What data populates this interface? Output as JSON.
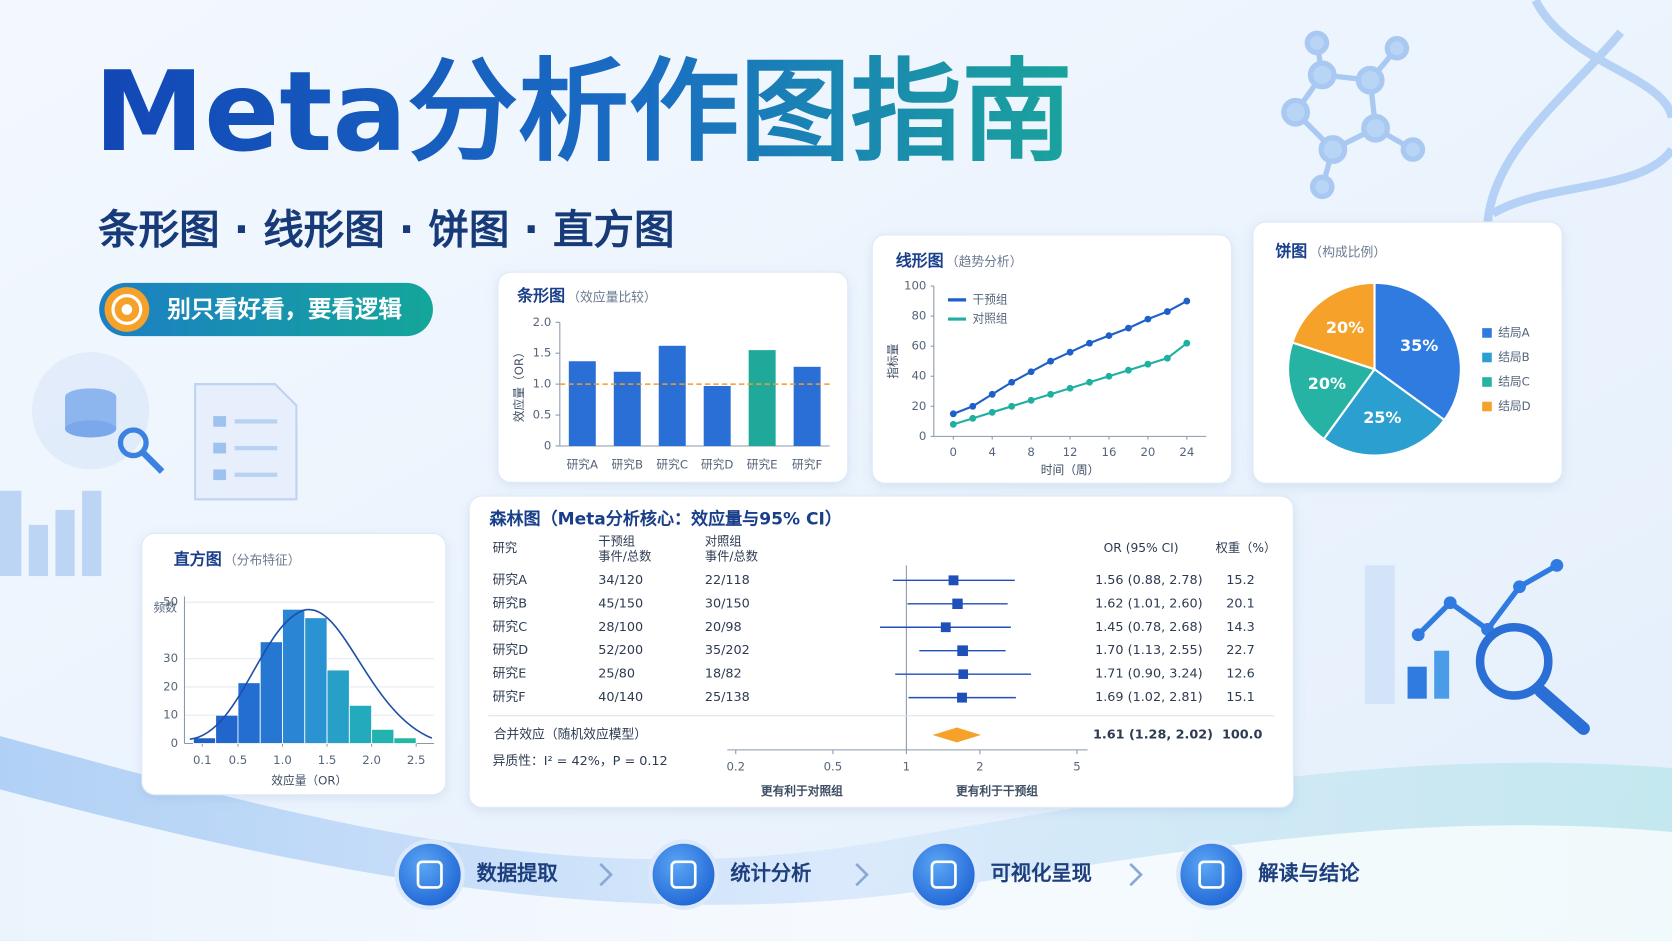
{
  "header": {
    "title": "Meta分析作图指南",
    "subtitle": "条形图 · 线形图 · 饼图 · 直方图",
    "badge": "别只看好看，要看逻辑"
  },
  "steps": [
    "数据提取",
    "统计分析",
    "可视化呈现",
    "解读与结论"
  ],
  "chart_data": [
    {
      "type": "bar",
      "title": "条形图",
      "subtitle": "（效应量比较）",
      "y_label": "效应量（OR）",
      "categories": [
        "研究A",
        "研究B",
        "研究C",
        "研究D",
        "研究E",
        "研究F"
      ],
      "values": [
        1.37,
        1.2,
        1.62,
        0.97,
        1.55,
        1.28
      ],
      "colors": [
        "#2a6fd6",
        "#2a6fd6",
        "#2a6fd6",
        "#2a6fd6",
        "#1fa99a",
        "#2a6fd6"
      ],
      "ylim": [
        0,
        2
      ],
      "yticks": [
        0,
        0.5,
        {
          "value": 1,
          "label": "1.0"
        },
        1.5,
        {
          "value": 2,
          "label": "2.0"
        }
      ],
      "reference_line": 1,
      "reference_color": "#f39a2e"
    },
    {
      "type": "line",
      "title": "线形图",
      "subtitle": "（趋势分析）",
      "y_label": "指标量",
      "x_label": "时间（周）",
      "x": [
        0,
        2,
        4,
        6,
        8,
        10,
        12,
        14,
        16,
        18,
        20,
        22,
        24
      ],
      "series": [
        {
          "name": "干预组",
          "color": "#1f5fc8",
          "values": [
            15,
            20,
            28,
            36,
            43,
            50,
            56,
            62,
            67,
            72,
            78,
            83,
            90
          ]
        },
        {
          "name": "对照组",
          "color": "#1fb0a2",
          "values": [
            8,
            12,
            16,
            20,
            24,
            28,
            32,
            36,
            40,
            44,
            48,
            52,
            62
          ]
        }
      ],
      "xlim": [
        -2,
        26
      ],
      "xticks": [
        0,
        4,
        8,
        12,
        16,
        20,
        24
      ],
      "ylim": [
        0,
        100
      ],
      "yticks": [
        0,
        20,
        40,
        60,
        80,
        100
      ]
    },
    {
      "type": "pie",
      "title": "饼图",
      "subtitle": "（构成比例）",
      "categories": [
        "结局A",
        "结局B",
        "结局C",
        "结局D"
      ],
      "values": [
        35,
        25,
        20,
        20
      ],
      "value_labels": [
        "35%",
        "25%",
        "20%",
        "20%"
      ],
      "colors": [
        "#2f7be0",
        "#2a9fd0",
        "#26b3a3",
        "#f5a12a"
      ]
    },
    {
      "type": "histogram",
      "title": "直方图",
      "subtitle": "（分布特征）",
      "y_label": "频数",
      "x_label": "效应量（OR）",
      "bins": [
        0,
        0.25,
        0.5,
        0.75,
        1,
        1.25,
        1.5,
        1.75,
        2,
        2.25,
        2.5
      ],
      "values": [
        2,
        10,
        21.5,
        36,
        47.5,
        44.5,
        26,
        13.5,
        5,
        2
      ],
      "colors": [
        "#1f5fc8",
        "#2166cc",
        "#236ed0",
        "#2577d2",
        "#2a86d4",
        "#2a93d2",
        "#27a0c8",
        "#24aabd",
        "#22b2b0",
        "#22b8a6"
      ],
      "xlim": [
        -0.1,
        2.7
      ],
      "xticks": [
        0.1,
        0.5,
        {
          "value": 1,
          "label": "1.0"
        },
        1.5,
        {
          "value": 2,
          "label": "2.0"
        },
        2.5
      ],
      "ylim": [
        0,
        52
      ],
      "yticks": [
        0,
        10,
        20,
        30,
        50
      ]
    },
    {
      "type": "forest",
      "title": "森林图（Meta分析核心：效应量与95% CI）",
      "columns": [
        "研究",
        "干预组",
        "事件/总数",
        "对照组",
        "事件/总数",
        "OR (95% CI)",
        "权重（%）"
      ],
      "studies": [
        "研究A",
        "研究B",
        "研究C",
        "研究D",
        "研究E",
        "研究F"
      ],
      "intervention": [
        "34/120",
        "45/150",
        "28/100",
        "52/200",
        "25/80",
        "40/140"
      ],
      "control": [
        "22/118",
        "30/150",
        "20/98",
        "35/202",
        "18/82",
        "25/138"
      ],
      "values": [
        1.56,
        1.62,
        1.45,
        1.7,
        1.71,
        1.69
      ],
      "lower": [
        0.88,
        1.01,
        0.78,
        1.13,
        0.9,
        1.02
      ],
      "upper": [
        2.78,
        2.6,
        2.68,
        2.55,
        3.24,
        2.81
      ],
      "value_labels": [
        "1.56 (0.88, 2.78)",
        "1.62 (1.01, 2.60)",
        "1.45 (0.78, 2.68)",
        "1.70 (1.13, 2.55)",
        "1.71 (0.90, 3.24)",
        "1.69 (1.02, 2.81)"
      ],
      "weights": [
        15.2,
        20.1,
        14.3,
        22.7,
        12.6,
        15.1
      ],
      "pooled": {
        "name": "合并效应（随机效应模型）",
        "value": 1.61,
        "lower": 1.28,
        "upper": 2.02,
        "value_label": "1.61 (1.28, 2.02)",
        "weight": {
          "value": 100,
          "label": "100.0"
        }
      },
      "heterogeneity": "异质性：I² = 42%，P = 0.12",
      "log_scale": true,
      "xlim": [
        0.2,
        5
      ],
      "xticks": [
        0.2,
        0.5,
        1,
        2,
        5
      ],
      "x_labels": [
        "更有利于对照组",
        "更有利于干预组"
      ],
      "color": "#1f4fb8",
      "pooled_color": "#f5a12a"
    }
  ]
}
